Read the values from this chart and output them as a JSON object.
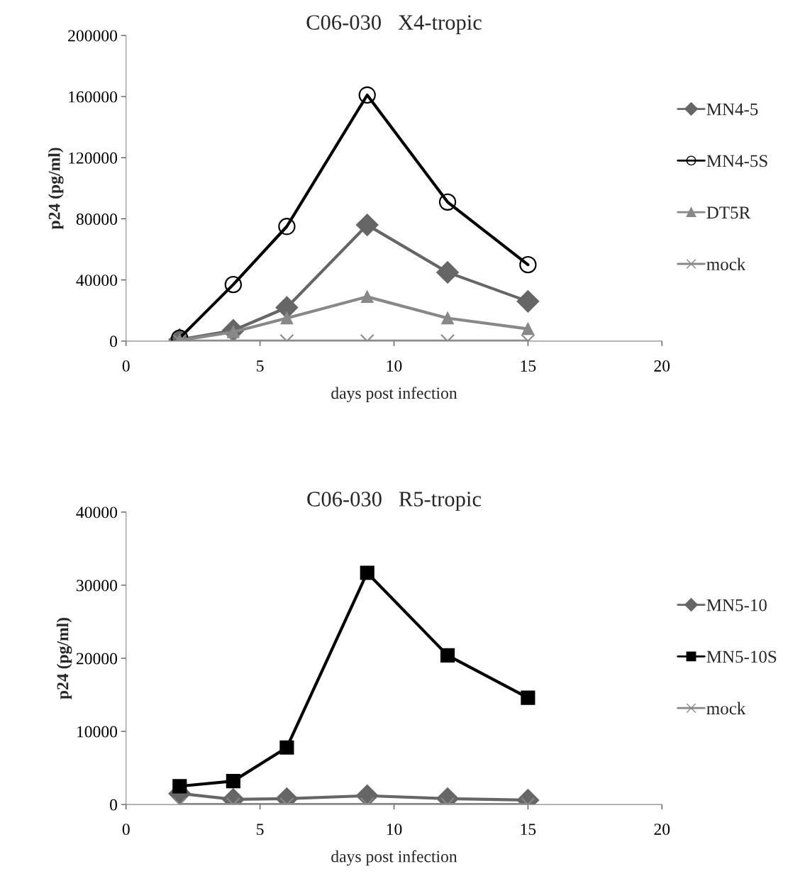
{
  "chart_data": [
    {
      "type": "line",
      "title": "C06-030   X4-tropic",
      "xlabel": "days post infection",
      "ylabel": "p24 (pg/ml)",
      "x": [
        2,
        4,
        6,
        9,
        12,
        15
      ],
      "xlim": [
        0,
        20
      ],
      "xticks": [
        0,
        5,
        10,
        15,
        20
      ],
      "ylim": [
        0,
        200000
      ],
      "yticks": [
        0,
        40000,
        80000,
        120000,
        160000,
        200000
      ],
      "grid": false,
      "legend": "right",
      "series": [
        {
          "name": "MN4-5",
          "color": "#666666",
          "marker": "diamond",
          "values": [
            1000,
            7000,
            22000,
            76000,
            45000,
            26000
          ]
        },
        {
          "name": "MN4-5S",
          "color": "#000000",
          "marker": "circle",
          "values": [
            2000,
            37000,
            75000,
            161000,
            91000,
            50000
          ]
        },
        {
          "name": "DT5R",
          "color": "#888888",
          "marker": "triangle",
          "values": [
            500,
            6000,
            15000,
            29000,
            15000,
            8000
          ]
        },
        {
          "name": "mock",
          "color": "#888888",
          "marker": "cross",
          "values": [
            0,
            0,
            0,
            0,
            0,
            0
          ]
        }
      ]
    },
    {
      "type": "line",
      "title": "C06-030   R5-tropic",
      "xlabel": "days post infection",
      "ylabel": "p24 (pg/ml)",
      "x": [
        2,
        4,
        6,
        9,
        12,
        15
      ],
      "xlim": [
        0,
        20
      ],
      "xticks": [
        0,
        5,
        10,
        15,
        20
      ],
      "ylim": [
        0,
        40000
      ],
      "yticks": [
        0,
        10000,
        20000,
        30000,
        40000
      ],
      "grid": false,
      "legend": "right",
      "series": [
        {
          "name": "MN5-10",
          "color": "#666666",
          "marker": "diamond",
          "values": [
            1500,
            700,
            800,
            1200,
            800,
            600
          ]
        },
        {
          "name": "MN5-10S",
          "color": "#000000",
          "marker": "square",
          "values": [
            2500,
            3200,
            7800,
            31700,
            20400,
            14600
          ]
        },
        {
          "name": "mock",
          "color": "#888888",
          "marker": "cross",
          "values": [
            0,
            0,
            0,
            0,
            0,
            0
          ]
        }
      ]
    }
  ]
}
